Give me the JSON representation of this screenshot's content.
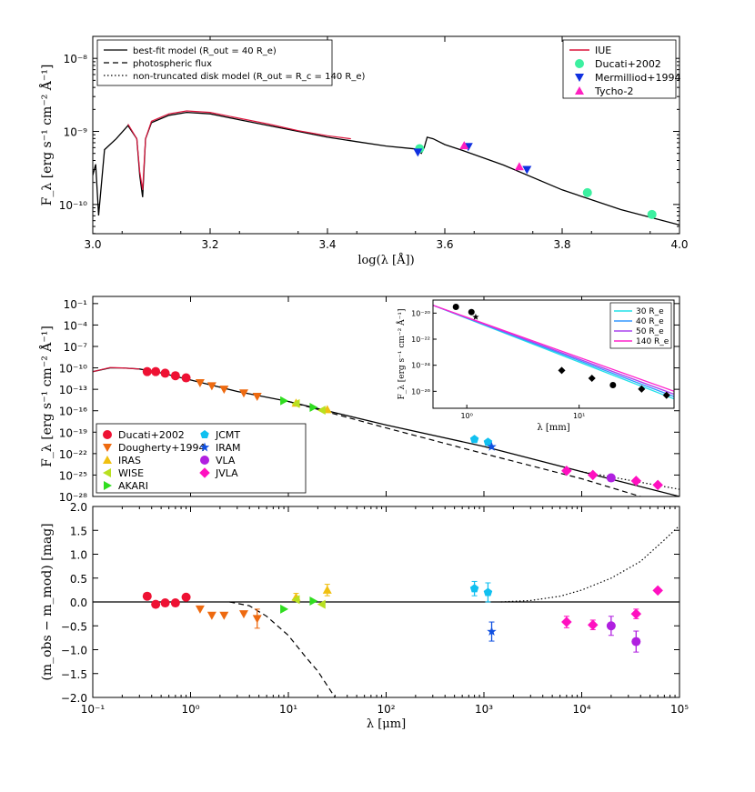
{
  "chart_data": [
    {
      "id": "top",
      "type": "line",
      "xlabel": "log(λ [Å])",
      "ylabel": "F_λ [erg s⁻¹ cm⁻² Å⁻¹]",
      "xlim": [
        3.0,
        4.0
      ],
      "ylim": [
        3.98e-11,
        2e-08
      ],
      "yscale": "log",
      "x_ticks": [
        "3.0",
        "3.2",
        "3.4",
        "3.6",
        "3.8",
        "4.0"
      ],
      "y_ticks": [
        "10⁻⁸",
        "10⁻⁹",
        "10⁻¹⁰"
      ],
      "legend_left": [
        {
          "label": "best-fit model (R_out = 40 R_e)",
          "style": "solid"
        },
        {
          "label": "photospheric flux",
          "style": "dashed"
        },
        {
          "label": "non-truncated disk model (R_out = R_c = 140 R_e)",
          "style": "dotted"
        }
      ],
      "legend_right": [
        {
          "label": "IUE",
          "marker": "line",
          "color": "#dc143c"
        },
        {
          "label": "Ducati+2002",
          "marker": "circle",
          "color": "#3cf0a0"
        },
        {
          "label": "Mermilliod+1994",
          "marker": "triangle-down",
          "color": "#1030e0"
        },
        {
          "label": "Tycho-2",
          "marker": "triangle-up",
          "color": "#ff20c0"
        }
      ],
      "model_logx": [
        3.0,
        3.005,
        3.01,
        3.02,
        3.04,
        3.06,
        3.075,
        3.08,
        3.085,
        3.09,
        3.1,
        3.13,
        3.16,
        3.2,
        3.25,
        3.3,
        3.35,
        3.4,
        3.45,
        3.5,
        3.55,
        3.56,
        3.565,
        3.57,
        3.58,
        3.6,
        3.63,
        3.7,
        3.8,
        3.9,
        4.0
      ],
      "model_logy": [
        -9.6,
        -9.45,
        -10.15,
        -9.25,
        -9.1,
        -8.92,
        -9.1,
        -9.6,
        -9.9,
        -9.1,
        -8.88,
        -8.78,
        -8.74,
        -8.76,
        -8.84,
        -8.92,
        -9.0,
        -9.08,
        -9.14,
        -9.2,
        -9.24,
        -9.3,
        -9.22,
        -9.08,
        -9.1,
        -9.18,
        -9.26,
        -9.46,
        -9.8,
        -10.07,
        -10.28
      ],
      "iue_logx": [
        3.06,
        3.075,
        3.08,
        3.085,
        3.09,
        3.1,
        3.13,
        3.16,
        3.2,
        3.25,
        3.3,
        3.35,
        3.4,
        3.44
      ],
      "iue_logy": [
        -8.9,
        -9.1,
        -9.55,
        -9.8,
        -9.1,
        -8.86,
        -8.76,
        -8.72,
        -8.74,
        -8.82,
        -8.9,
        -8.99,
        -9.06,
        -9.1
      ],
      "points": [
        {
          "set": "Ducati+2002",
          "marker": "circle",
          "color": "#3cf0a0",
          "logx": [
            3.557,
            3.843,
            3.953
          ],
          "y": [
            5.8e-10,
            1.45e-10,
            7.3e-11
          ]
        },
        {
          "set": "Mermilliod+1994",
          "marker": "triangle-down",
          "color": "#1030e0",
          "logx": [
            3.554,
            3.64,
            3.74
          ],
          "y": [
            5.2e-10,
            6.2e-10,
            3e-10
          ]
        },
        {
          "set": "Tycho-2",
          "marker": "triangle-up",
          "color": "#ff20c0",
          "logx": [
            3.633,
            3.727
          ],
          "y": [
            6.4e-10,
            3.3e-10
          ]
        }
      ]
    },
    {
      "id": "middle",
      "type": "line",
      "xlabel": "",
      "ylabel": "F_λ [erg s⁻¹ cm⁻² Å⁻¹]",
      "xlim": [
        0.1,
        100000
      ],
      "xscale": "log",
      "ylim": [
        1e-28,
        1
      ],
      "yscale": "log",
      "y_ticks": [
        "10⁻¹",
        "10⁻⁴",
        "10⁻⁷",
        "10⁻¹⁰",
        "10⁻¹³",
        "10⁻¹⁶",
        "10⁻¹⁹",
        "10⁻²²",
        "10⁻²⁵",
        "10⁻²⁸"
      ],
      "legend": [
        {
          "label": "Ducati+2002",
          "marker": "circle",
          "color": "#ee1133"
        },
        {
          "label": "Dougherty+1994",
          "marker": "triangle-down",
          "color": "#ee6a10"
        },
        {
          "label": "IRAS",
          "marker": "triangle-up",
          "color": "#f0c010"
        },
        {
          "label": "WISE",
          "marker": "triangle-left",
          "color": "#b8e020"
        },
        {
          "label": "AKARI",
          "marker": "triangle-right",
          "color": "#30dd20"
        },
        {
          "label": "JCMT",
          "marker": "pentagon",
          "color": "#10c0f0"
        },
        {
          "label": "IRAM",
          "marker": "star",
          "color": "#1050e0"
        },
        {
          "label": "VLA",
          "marker": "circle",
          "color": "#b020e0"
        },
        {
          "label": "JVLA",
          "marker": "diamond",
          "color": "#ff10c0"
        }
      ],
      "points": [
        {
          "set": "Ducati+2002",
          "x": [
            0.36,
            0.44,
            0.55,
            0.7,
            0.9
          ],
          "y": [
            3e-11,
            3e-11,
            1.8e-11,
            8e-12,
            4e-12
          ]
        },
        {
          "set": "Dougherty+1994",
          "x": [
            1.25,
            1.65,
            2.2,
            3.5,
            4.8
          ],
          "y": [
            8e-13,
            3e-13,
            1e-13,
            3e-14,
            1e-14
          ]
        },
        {
          "set": "IRAS",
          "x": [
            12,
            25
          ],
          "y": [
            1.2e-15,
            1.5e-16
          ]
        },
        {
          "set": "WISE",
          "x": [
            12,
            22
          ],
          "y": [
            1e-15,
            1.2e-16
          ]
        },
        {
          "set": "AKARI",
          "x": [
            9,
            18
          ],
          "y": [
            2.5e-15,
            3e-16
          ]
        },
        {
          "set": "JCMT",
          "x": [
            800,
            1100
          ],
          "y": [
            1e-20,
            4e-21
          ]
        },
        {
          "set": "IRAM",
          "x": [
            1200
          ],
          "y": [
            9e-22
          ]
        },
        {
          "set": "VLA",
          "x": [
            20000
          ],
          "y": [
            4e-26
          ]
        },
        {
          "set": "JVLA",
          "x": [
            7000,
            13000,
            36000,
            60000
          ],
          "y": [
            4e-25,
            1e-25,
            1.5e-26,
            4e-27
          ]
        }
      ],
      "model_x": [
        0.1,
        0.15,
        0.2,
        0.3,
        0.5,
        1,
        3,
        10,
        100,
        1000,
        10000,
        100000
      ],
      "model_y": [
        3e-11,
        1e-10,
        1e-10,
        7e-11,
        2e-11,
        2e-12,
        5e-14,
        2e-15,
        1e-18,
        1e-21,
        3e-25,
        1e-28
      ],
      "photo_x": [
        10,
        100,
        1000,
        10000,
        40000
      ],
      "photo_y": [
        2e-15,
        4e-19,
        1e-22,
        3e-26,
        1e-28
      ],
      "nontrunc_x": [
        10000,
        100000
      ],
      "nontrunc_y": [
        3e-25,
        1e-27
      ],
      "inset": {
        "type": "line",
        "xlabel": "λ [mm]",
        "ylabel": "F_λ [erg s⁻¹ cm⁻² Å⁻¹]",
        "xlim": [
          0.5,
          70
        ],
        "ylim": [
          5e-28,
          1e-19
        ],
        "xscale": "log",
        "yscale": "log",
        "x_ticks": [
          "10⁰",
          "10¹"
        ],
        "y_ticks": [
          "10⁻²⁰",
          "10⁻²²",
          "10⁻²⁴",
          "10⁻²⁶"
        ],
        "legend": [
          {
            "label": "30 R_e",
            "color": "#22e0e8"
          },
          {
            "label": "40 R_e",
            "color": "#3399ff"
          },
          {
            "label": "50 R_e",
            "color": "#aa44ee"
          },
          {
            "label": "140 R_e",
            "color": "#ff22cc"
          }
        ],
        "series": [
          {
            "name": "30 R_e",
            "x": [
              0.5,
              70
            ],
            "y": [
              4e-20,
              2.6e-27
            ]
          },
          {
            "name": "40 R_e",
            "x": [
              0.5,
              70
            ],
            "y": [
              4e-20,
              4e-27
            ]
          },
          {
            "name": "50 R_e",
            "x": [
              0.5,
              70
            ],
            "y": [
              4e-20,
              6e-27
            ]
          },
          {
            "name": "140 R_e",
            "x": [
              0.5,
              70
            ],
            "y": [
              4e-20,
              1e-26
            ]
          }
        ],
        "points_x": [
          0.8,
          1.1,
          1.2,
          7,
          13,
          20,
          36,
          60
        ],
        "points_y": [
          3e-20,
          1.2e-20,
          5e-21,
          4e-25,
          1e-25,
          3e-26,
          1.5e-26,
          5e-27
        ],
        "points_marker": [
          "circle",
          "circle",
          "star",
          "diamond",
          "diamond",
          "circle",
          "diamond",
          "diamond"
        ]
      }
    },
    {
      "id": "bottom",
      "type": "scatter",
      "xlabel": "λ [μm]",
      "ylabel": "(m_obs − m_mod) [mag]",
      "xlim": [
        0.1,
        100000
      ],
      "xscale": "log",
      "ylim": [
        -2.0,
        2.0
      ],
      "x_ticks": [
        "10⁻¹",
        "10⁰",
        "10¹",
        "10²",
        "10³",
        "10⁴",
        "10⁵"
      ],
      "y_ticks": [
        "2.0",
        "1.5",
        "1.0",
        "0.5",
        "0.0",
        "−0.5",
        "−1.0",
        "−1.5",
        "−2.0"
      ],
      "points": [
        {
          "set": "Ducati+2002",
          "x": [
            0.36,
            0.44,
            0.55,
            0.7,
            0.9
          ],
          "y": [
            0.12,
            -0.05,
            -0.02,
            -0.02,
            0.1
          ],
          "err": [
            0,
            0,
            0,
            0,
            0
          ]
        },
        {
          "set": "Dougherty+1994",
          "x": [
            1.25,
            1.65,
            2.2,
            3.5,
            4.8
          ],
          "y": [
            -0.15,
            -0.28,
            -0.28,
            -0.25,
            -0.35
          ],
          "err": [
            0,
            0,
            0,
            0,
            0.2
          ]
        },
        {
          "set": "IRAS",
          "x": [
            12,
            25
          ],
          "y": [
            0.1,
            0.25
          ],
          "err": [
            0.08,
            0.12
          ]
        },
        {
          "set": "WISE",
          "x": [
            12,
            22
          ],
          "y": [
            0.05,
            -0.05
          ],
          "err": [
            0,
            0
          ]
        },
        {
          "set": "AKARI",
          "x": [
            9,
            18
          ],
          "y": [
            -0.15,
            0.02
          ],
          "err": [
            0,
            0
          ]
        },
        {
          "set": "JCMT",
          "x": [
            800,
            1100
          ],
          "y": [
            0.28,
            0.2
          ],
          "err": [
            0.15,
            0.2
          ]
        },
        {
          "set": "IRAM",
          "x": [
            1200
          ],
          "y": [
            -0.62
          ],
          "err": [
            0.2
          ]
        },
        {
          "set": "VLA",
          "x": [
            20000
          ],
          "y": [
            -0.5
          ],
          "err": [
            0.2
          ]
        },
        {
          "set": "JVLA",
          "x": [
            7000,
            13000,
            36000,
            60000
          ],
          "y": [
            -0.42,
            -0.48,
            -0.25,
            0.24
          ],
          "err": [
            0.12,
            0.1,
            0.1,
            0
          ]
        },
        {
          "set": "VLA",
          "x": [
            36000
          ],
          "y": [
            -0.83
          ],
          "err": [
            0.22
          ]
        }
      ],
      "photo_curve_x": [
        2.5,
        4,
        6,
        10,
        15,
        20,
        30
      ],
      "photo_curve_y": [
        0.0,
        -0.08,
        -0.3,
        -0.7,
        -1.15,
        -1.45,
        -2.0
      ],
      "dotted_curve_x": [
        1500,
        3000,
        6000,
        10000,
        20000,
        40000,
        70000,
        100000
      ],
      "dotted_curve_y": [
        0.0,
        0.03,
        0.12,
        0.25,
        0.5,
        0.85,
        1.3,
        1.6
      ]
    }
  ]
}
